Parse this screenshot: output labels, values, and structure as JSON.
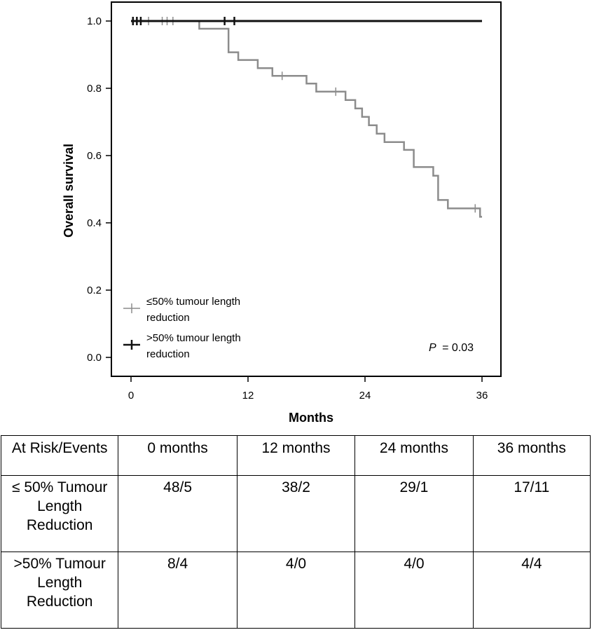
{
  "chart_data": {
    "type": "line",
    "subtype": "kaplan-meier step",
    "xlabel": "Months",
    "ylabel": "Overall survival",
    "xlim": [
      0,
      36
    ],
    "ylim": [
      0,
      1.0
    ],
    "x_ticks": [
      0,
      12,
      24,
      36
    ],
    "y_ticks": [
      0.0,
      0.2,
      0.4,
      0.6,
      0.8,
      1.0
    ],
    "x_tick_labels": [
      "0",
      "12",
      "24",
      "36"
    ],
    "y_tick_labels": [
      "0.0",
      "0.2",
      "0.4",
      "0.6",
      "0.8",
      "1.0"
    ],
    "grid": false,
    "legend_position": "bottom-left",
    "annotation": {
      "label": "P",
      "value": "= 0.03"
    },
    "series": [
      {
        "name": "≤50% tumour length reduction",
        "legend_lines": [
          "≤50% tumour length",
          "reduction"
        ],
        "color": "#8c8c8c",
        "steps": [
          [
            0,
            1.0
          ],
          [
            7,
            0.977
          ],
          [
            10,
            0.907
          ],
          [
            11,
            0.884
          ],
          [
            13,
            0.86
          ],
          [
            14.5,
            0.837
          ],
          [
            18,
            0.814
          ],
          [
            19,
            0.79
          ],
          [
            22,
            0.765
          ],
          [
            23,
            0.74
          ],
          [
            23.7,
            0.715
          ],
          [
            24.4,
            0.69
          ],
          [
            25.2,
            0.665
          ],
          [
            26,
            0.64
          ],
          [
            28,
            0.617
          ],
          [
            29,
            0.566
          ],
          [
            31,
            0.54
          ],
          [
            31.5,
            0.468
          ],
          [
            32.5,
            0.443
          ],
          [
            35.8,
            0.418
          ],
          [
            36,
            0.418
          ]
        ],
        "censored": [
          [
            1.8,
            1.0
          ],
          [
            3.2,
            1.0
          ],
          [
            3.7,
            1.0
          ],
          [
            4.3,
            1.0
          ],
          [
            15.5,
            0.837
          ],
          [
            21,
            0.79
          ],
          [
            35.3,
            0.443
          ]
        ]
      },
      {
        "name": ">50% tumour length reduction",
        "legend_lines": [
          ">50% tumour length",
          "reduction"
        ],
        "color": "#111111",
        "steps": [
          [
            0,
            1.0
          ],
          [
            36,
            1.0
          ]
        ],
        "censored": [
          [
            0.2,
            1.0
          ],
          [
            0.6,
            1.0
          ],
          [
            1.0,
            1.0
          ],
          [
            9.6,
            1.0
          ],
          [
            10.6,
            1.0
          ]
        ]
      }
    ]
  },
  "risk_table": {
    "header": [
      "At Risk/Events",
      "0 months",
      "12 months",
      "24 months",
      "36 months"
    ],
    "rows": [
      [
        "≤ 50% Tumour Length Reduction",
        "48/5",
        "38/2",
        "29/1",
        "17/11"
      ],
      [
        ">50% Tumour Length Reduction",
        "8/4",
        "4/0",
        "4/0",
        "4/4"
      ]
    ]
  }
}
